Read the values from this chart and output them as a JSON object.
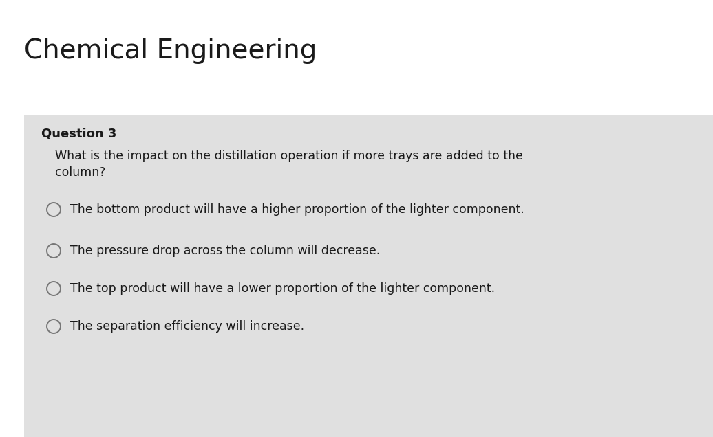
{
  "title": "Chemical Engineering",
  "title_fontsize": 28,
  "title_color": "#1a1a1a",
  "bg_color": "#ffffff",
  "card_color": "#c8c8c8",
  "card_alpha": 0.55,
  "question_label": "Question 3",
  "question_label_fontsize": 13,
  "question_text_line1": "What is the impact on the distillation operation if more trays are added to the",
  "question_text_line2": "column?",
  "question_fontsize": 12.5,
  "options": [
    "The bottom product will have a higher proportion of the lighter component.",
    "The pressure drop across the column will decrease.",
    "The top product will have a lower proportion of the lighter component.",
    "The separation efficiency will increase."
  ],
  "option_fontsize": 12.5,
  "option_color": "#1a1a1a",
  "circle_color": "#777777",
  "circle_lw": 1.4
}
